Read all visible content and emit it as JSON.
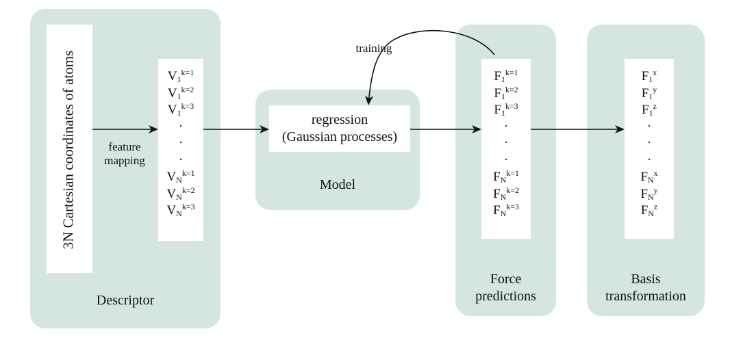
{
  "descriptor": {
    "title": "Descriptor",
    "input_label": "3N Cartesian coordinates of atoms",
    "mapping_label_line1": "feature",
    "mapping_label_line2": "mapping",
    "vector": [
      {
        "base": "V",
        "sub": "1",
        "sup": "k=1"
      },
      {
        "base": "V",
        "sub": "1",
        "sup": "k=2"
      },
      {
        "base": "V",
        "sub": "1",
        "sup": "k=3"
      },
      {
        "dot": "."
      },
      {
        "dot": "."
      },
      {
        "dot": "."
      },
      {
        "base": "V",
        "sub": "N",
        "sup": "k=1"
      },
      {
        "base": "V",
        "sub": "N",
        "sup": "k=2"
      },
      {
        "base": "V",
        "sub": "N",
        "sup": "k=3"
      }
    ]
  },
  "model": {
    "title": "Model",
    "regression_line1": "regression",
    "regression_line2": "(Gaussian processes)"
  },
  "training_label": "training",
  "force_predictions": {
    "title_line1": "Force",
    "title_line2": "predictions",
    "vector": [
      {
        "base": "F",
        "sub": "1",
        "sup": "k=1"
      },
      {
        "base": "F",
        "sub": "1",
        "sup": "k=2"
      },
      {
        "base": "F",
        "sub": "1",
        "sup": "k=3"
      },
      {
        "dot": "."
      },
      {
        "dot": "."
      },
      {
        "dot": "."
      },
      {
        "base": "F",
        "sub": "N",
        "sup": "k=1"
      },
      {
        "base": "F",
        "sub": "N",
        "sup": "k=2"
      },
      {
        "base": "F",
        "sub": "N",
        "sup": "k=3"
      }
    ]
  },
  "basis_transformation": {
    "title_line1": "Basis",
    "title_line2": "transformation",
    "vector": [
      {
        "base": "F",
        "sub": "1",
        "sup": "x"
      },
      {
        "base": "F",
        "sub": "1",
        "sup": "y"
      },
      {
        "base": "F",
        "sub": "1",
        "sup": "z"
      },
      {
        "dot": "."
      },
      {
        "dot": "."
      },
      {
        "dot": "."
      },
      {
        "base": "F",
        "sub": "N",
        "sup": "x"
      },
      {
        "base": "F",
        "sub": "N",
        "sup": "y"
      },
      {
        "base": "F",
        "sub": "N",
        "sup": "z"
      }
    ]
  }
}
